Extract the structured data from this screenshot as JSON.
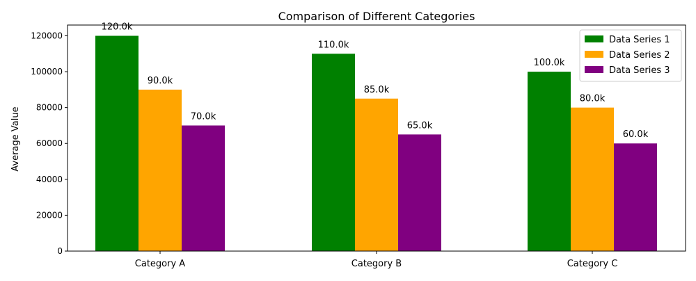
{
  "chart_data": {
    "type": "bar",
    "title": "Comparison of Different Categories",
    "xlabel": "",
    "ylabel": "Average Value",
    "categories": [
      "Category A",
      "Category B",
      "Category C"
    ],
    "series": [
      {
        "name": "Data Series 1",
        "color": "#008000",
        "values": [
          120000,
          110000,
          100000
        ],
        "labels": [
          "120.0k",
          "110.0k",
          "100.0k"
        ]
      },
      {
        "name": "Data Series 2",
        "color": "#FFA500",
        "values": [
          90000,
          85000,
          80000
        ],
        "labels": [
          "90.0k",
          "85.0k",
          "80.0k"
        ]
      },
      {
        "name": "Data Series 3",
        "color": "#800080",
        "values": [
          70000,
          65000,
          60000
        ],
        "labels": [
          "70.0k",
          "65.0k",
          "60.0k"
        ]
      }
    ],
    "ylim": [
      0,
      126000
    ],
    "yticks": [
      0,
      20000,
      40000,
      60000,
      80000,
      100000,
      120000
    ],
    "ytick_labels": [
      "0",
      "20000",
      "40000",
      "60000",
      "80000",
      "100000",
      "120000"
    ],
    "grid": false,
    "legend_position": "top-right"
  }
}
